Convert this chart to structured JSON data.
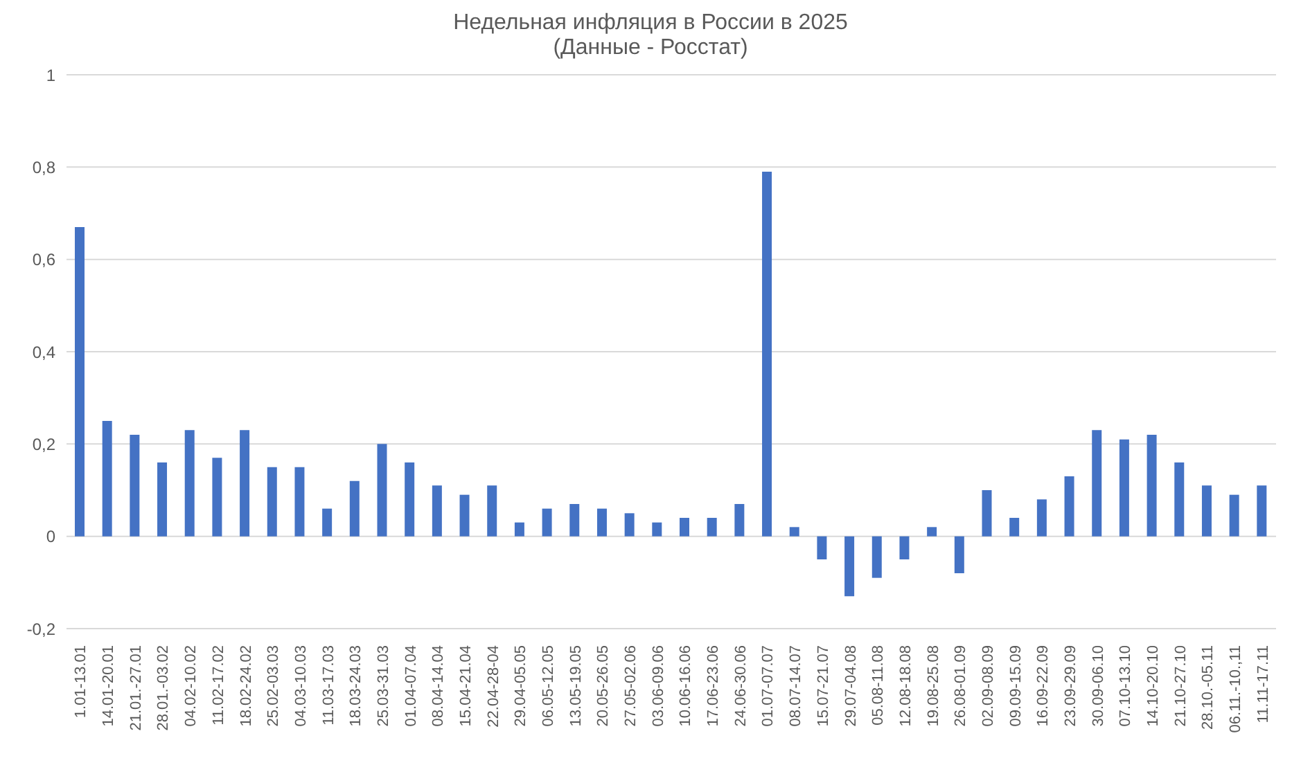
{
  "chart_data": {
    "type": "bar",
    "title": "Недельная инфляция в России в 2025",
    "subtitle": "(Данные - Росстат)",
    "categories": [
      "1.01-13.01",
      "14.01-20.01",
      "21.01.-27.01",
      "28.01.-03.02",
      "04.02-10.02",
      "11.02-17.02",
      "18.02-24.02",
      "25.02-03.03",
      "04.03-10.03",
      "11.03-17.03",
      "18.03-24.03",
      "25.03-31.03",
      "01.04-07.04",
      "08.04-14.04",
      "15.04-21.04",
      "22.04-28-04",
      "29.04-05.05",
      "06.05-12.05",
      "13.05-19.05",
      "20.05-26.05",
      "27.05-02.06",
      "03.06-09.06",
      "10.06-16.06",
      "17.06-23.06",
      "24.06-30.06",
      "01.07-07.07",
      "08.07-14.07",
      "15.07-21.07",
      "29.07-04.08",
      "05.08-11.08",
      "12.08-18.08",
      "19.08-25.08",
      "26.08-01.09",
      "02.09-08.09",
      "09.09-15.09",
      "16.09-22.09",
      "23.09-29.09",
      "30.09-06.10",
      "07.10-13.10",
      "14.10-20.10",
      "21.10-27.10",
      "28.10.-05.11",
      "06.11.-10.,11",
      "11.11-17.11"
    ],
    "values": [
      0.67,
      0.25,
      0.22,
      0.16,
      0.23,
      0.17,
      0.23,
      0.15,
      0.15,
      0.06,
      0.12,
      0.2,
      0.16,
      0.11,
      0.09,
      0.11,
      0.03,
      0.06,
      0.07,
      0.06,
      0.05,
      0.03,
      0.04,
      0.04,
      0.07,
      0.79,
      0.02,
      -0.05,
      -0.13,
      -0.09,
      -0.05,
      0.02,
      -0.08,
      0.1,
      0.04,
      0.08,
      0.13,
      0.23,
      0.21,
      0.22,
      0.16,
      0.11,
      0.09,
      0.11
    ],
    "color": "#4472c4",
    "ylim": [
      -0.2,
      1
    ],
    "yticks": [
      {
        "value": -0.2,
        "label": "-0,2"
      },
      0,
      {
        "value": 0.2,
        "label": "0,2"
      },
      {
        "value": 0.4,
        "label": "0,4"
      },
      {
        "value": 0.6,
        "label": "0,6"
      },
      {
        "value": 0.8,
        "label": "0,8"
      },
      1
    ],
    "grid": "y"
  }
}
